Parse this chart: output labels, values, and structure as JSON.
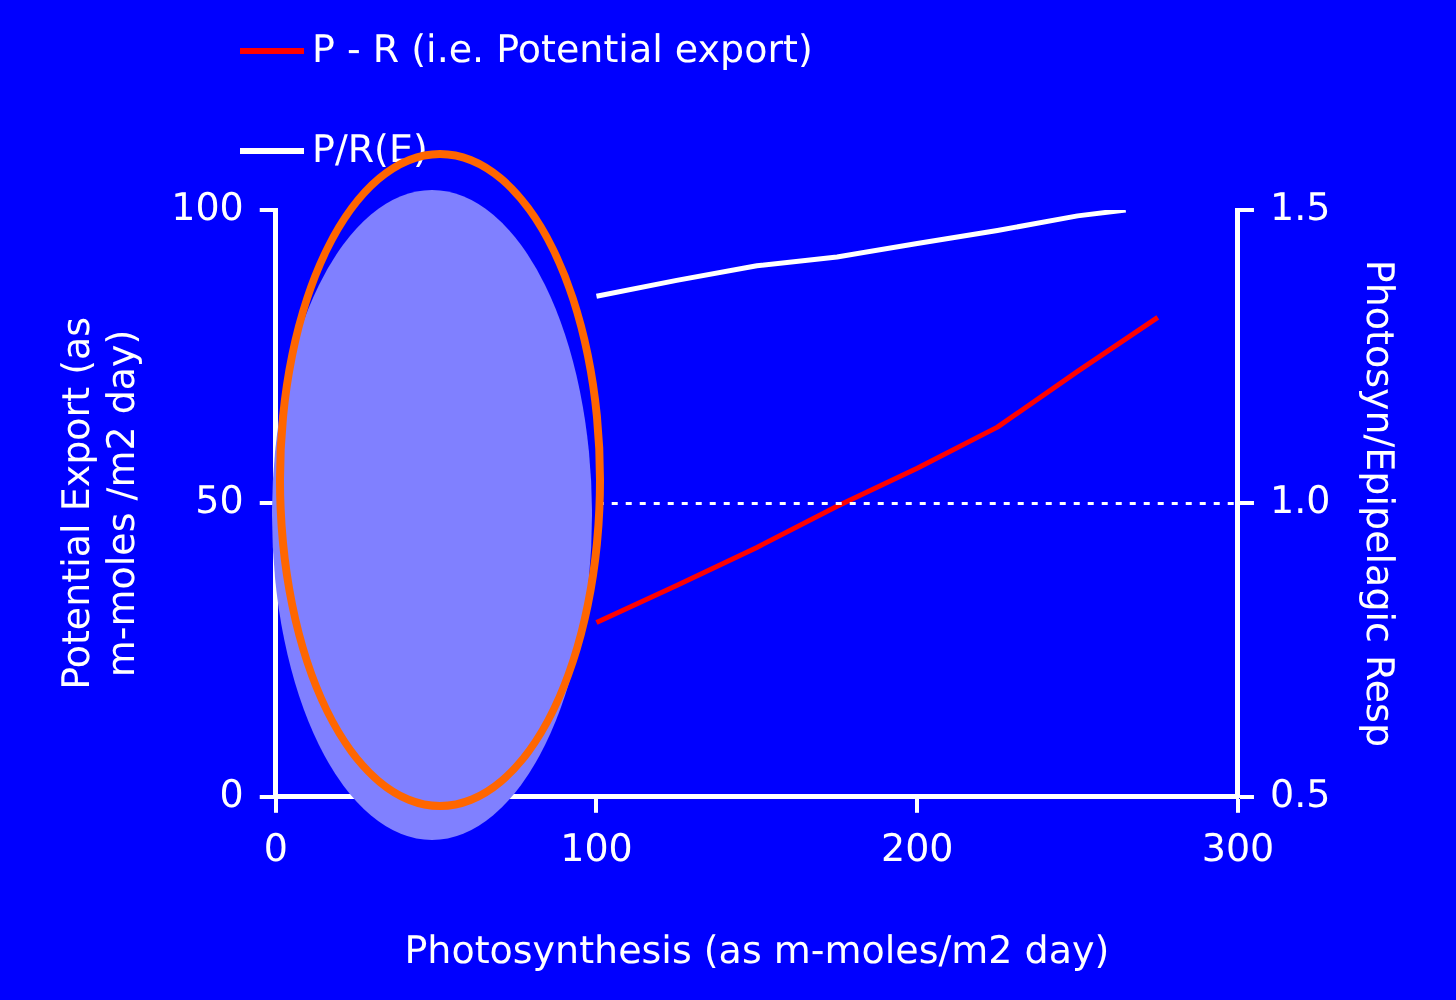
{
  "chart_data": {
    "type": "line",
    "xlabel": "Photosynthesis (as m-moles/m2 day)",
    "ylabel": "Potential Export (as m-moles /m2 day)",
    "y2label": "Photosyn/Epipelagic Resp",
    "series": [
      {
        "name": "P - R (i.e. Potential export)",
        "color": "#ff0000",
        "x": [
          100,
          125,
          150,
          175,
          200,
          225,
          250,
          275
        ],
        "values": [
          29.7,
          36,
          42.5,
          49.5,
          56,
          63,
          72.5,
          81.7
        ]
      },
      {
        "name": "P/R(E)",
        "color": "#ffffff",
        "axis": "y2",
        "x": [
          100,
          125,
          150,
          175,
          200,
          225,
          250,
          265
        ],
        "values": [
          1.353,
          1.38,
          1.405,
          1.42,
          1.443,
          1.465,
          1.49,
          1.5
        ]
      }
    ],
    "xlim": [
      0,
      300
    ],
    "xticks": [
      0,
      100,
      200,
      300
    ],
    "ylim": [
      0,
      100
    ],
    "yticks": [
      0,
      50,
      100
    ],
    "y2lim": [
      0.5,
      1.5
    ],
    "y2ticks": [
      0.5,
      {
        "value": 1,
        "label": "1.0"
      },
      1.5
    ],
    "ref_lines": [
      {
        "axis": "y2",
        "value": 1,
        "color": "#ffffff",
        "line_style": "dotted"
      }
    ],
    "grid": false,
    "legend": "top left",
    "marker": "none",
    "line_style": "solid"
  }
}
